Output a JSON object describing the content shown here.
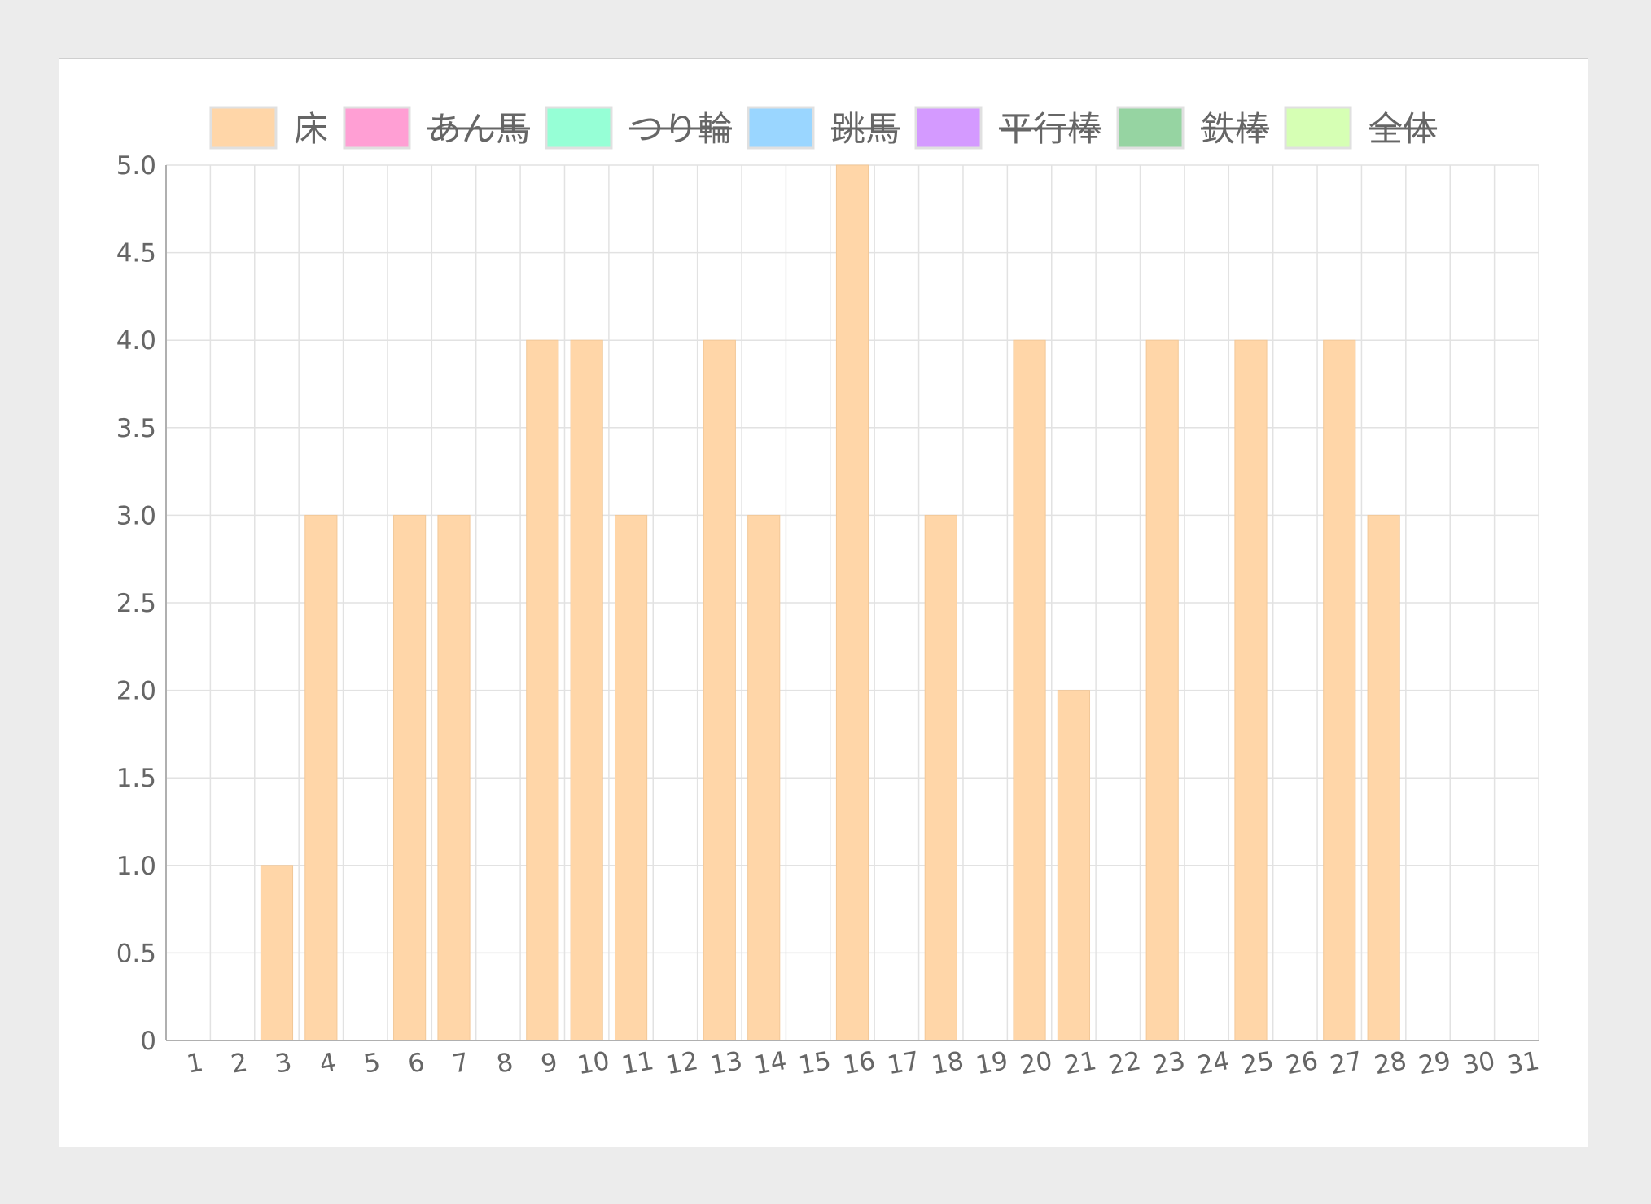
{
  "colors": {
    "page_background": "#ececec",
    "card_background": "#ffffff",
    "grid": "#e2e2e2",
    "axis": "#b0b0b0",
    "text": "#666666"
  },
  "chart_data": {
    "type": "bar",
    "title": "",
    "xlabel": "",
    "ylabel": "",
    "ylim": [
      0,
      5
    ],
    "yticks": [
      "0",
      "0.5",
      "1.0",
      "1.5",
      "2.0",
      "2.5",
      "3.0",
      "3.5",
      "4.0",
      "4.5",
      "5.0"
    ],
    "legend_position": "top",
    "grid": true,
    "categories": [
      "1",
      "2",
      "3",
      "4",
      "5",
      "6",
      "7",
      "8",
      "9",
      "10",
      "11",
      "12",
      "13",
      "14",
      "15",
      "16",
      "17",
      "18",
      "19",
      "20",
      "21",
      "22",
      "23",
      "24",
      "25",
      "26",
      "27",
      "28",
      "29",
      "30",
      "31"
    ],
    "series": [
      {
        "name": "床",
        "hidden": false,
        "fill": "#ffd6a8",
        "stroke": "#f2c898",
        "values": [
          0,
          0,
          1,
          3,
          0,
          3,
          3,
          0,
          4,
          4,
          3,
          0,
          4,
          3,
          0,
          5,
          0,
          3,
          0,
          4,
          2,
          0,
          4,
          0,
          4,
          0,
          4,
          3,
          0,
          0,
          0
        ]
      },
      {
        "name": "あん馬",
        "hidden": true,
        "fill": "#ff9fd4",
        "stroke": "#e08ab8"
      },
      {
        "name": "つり輪",
        "hidden": true,
        "fill": "#96ffd6",
        "stroke": "#80e0bb"
      },
      {
        "name": "跳馬",
        "hidden": true,
        "fill": "#9ad6ff",
        "stroke": "#85bde0"
      },
      {
        "name": "平行棒",
        "hidden": true,
        "fill": "#d49aff",
        "stroke": "#b985e0"
      },
      {
        "name": "鉄棒",
        "hidden": true,
        "fill": "#96d4a2",
        "stroke": "#80ba8c"
      },
      {
        "name": "全体",
        "hidden": true,
        "fill": "#d6ffb4",
        "stroke": "#bde09c"
      }
    ]
  }
}
